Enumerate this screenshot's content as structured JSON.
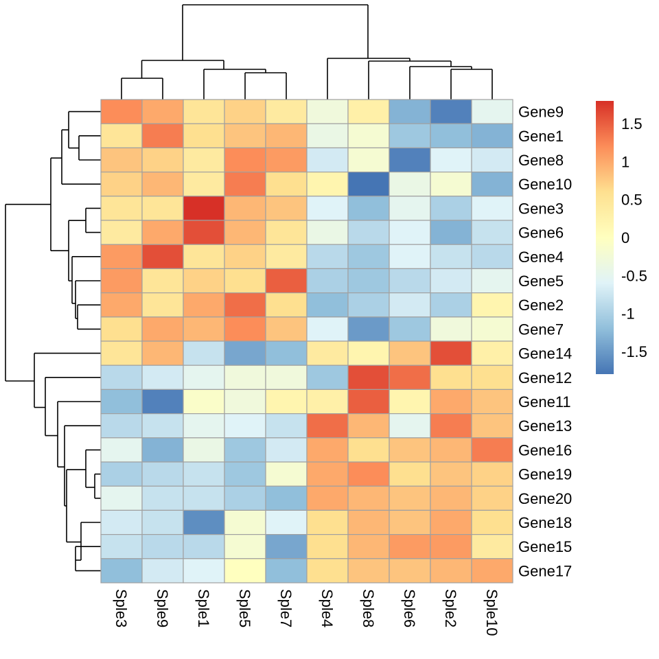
{
  "chart_data": {
    "type": "heatmap",
    "title": "",
    "columns": [
      "Sple3",
      "Sple9",
      "Sple1",
      "Sple5",
      "Sple7",
      "Sple4",
      "Sple8",
      "Sple6",
      "Sple2",
      "Sple10"
    ],
    "rows": [
      "Gene9",
      "Gene1",
      "Gene8",
      "Gene10",
      "Gene3",
      "Gene6",
      "Gene4",
      "Gene5",
      "Gene2",
      "Gene7",
      "Gene14",
      "Gene12",
      "Gene11",
      "Gene13",
      "Gene16",
      "Gene19",
      "Gene20",
      "Gene18",
      "Gene15",
      "Gene17"
    ],
    "values": [
      [
        1.2,
        1.0,
        0.5,
        0.7,
        0.4,
        -0.3,
        0.3,
        -1.3,
        -1.7,
        -0.5
      ],
      [
        0.5,
        1.3,
        0.6,
        0.8,
        0.9,
        -0.4,
        -0.2,
        -1.1,
        -1.2,
        -1.3
      ],
      [
        0.8,
        0.7,
        0.4,
        1.2,
        1.1,
        -0.7,
        -0.2,
        -1.7,
        -0.6,
        -0.7
      ],
      [
        0.7,
        0.9,
        0.4,
        1.3,
        0.6,
        0.2,
        -1.8,
        -0.4,
        -0.2,
        -1.3
      ],
      [
        0.5,
        0.5,
        1.8,
        0.9,
        0.8,
        -0.6,
        -1.2,
        -0.5,
        -1.0,
        -0.6
      ],
      [
        0.4,
        1.0,
        1.6,
        0.9,
        0.5,
        -0.4,
        -0.9,
        -0.6,
        -1.3,
        -0.8
      ],
      [
        1.1,
        1.6,
        0.5,
        0.7,
        0.4,
        -0.9,
        -1.1,
        -0.6,
        -0.8,
        -0.9
      ],
      [
        1.1,
        0.5,
        0.7,
        0.6,
        1.5,
        -1.0,
        -1.1,
        -0.9,
        -0.7,
        -0.5
      ],
      [
        1.0,
        0.5,
        1.0,
        1.4,
        0.6,
        -1.2,
        -1.0,
        -0.7,
        -1.0,
        0.2
      ],
      [
        0.6,
        1.0,
        0.9,
        1.2,
        0.8,
        -0.6,
        -1.5,
        -1.1,
        -0.3,
        -0.2
      ],
      [
        0.5,
        0.9,
        -0.8,
        -1.4,
        -1.2,
        0.4,
        0.2,
        0.8,
        1.6,
        0.3
      ],
      [
        -0.9,
        -0.7,
        -0.5,
        -0.3,
        -0.3,
        -1.1,
        1.6,
        1.4,
        0.6,
        0.6
      ],
      [
        -1.2,
        -1.7,
        -0.1,
        -0.3,
        0.2,
        0.3,
        1.5,
        0.2,
        1.0,
        0.8
      ],
      [
        -0.9,
        -0.8,
        -0.5,
        -0.6,
        -0.8,
        1.4,
        0.9,
        -0.5,
        1.3,
        0.8
      ],
      [
        -0.5,
        -1.3,
        -0.4,
        -1.1,
        -0.7,
        1.0,
        0.6,
        0.8,
        0.9,
        1.3
      ],
      [
        -1.0,
        -0.9,
        -0.8,
        -1.1,
        -0.2,
        1.0,
        1.2,
        0.6,
        0.8,
        0.7
      ],
      [
        -0.5,
        -0.8,
        -0.8,
        -1.0,
        -1.2,
        1.0,
        0.9,
        0.8,
        0.9,
        0.7
      ],
      [
        -0.7,
        -0.8,
        -1.6,
        -0.2,
        -0.6,
        0.6,
        0.9,
        0.8,
        1.0,
        0.6
      ],
      [
        -0.8,
        -0.9,
        -0.9,
        -0.2,
        -1.4,
        0.6,
        0.9,
        1.1,
        1.1,
        0.4
      ],
      [
        -1.2,
        -0.7,
        -0.6,
        0.0,
        -1.2,
        0.6,
        0.8,
        0.8,
        0.9,
        1.0
      ]
    ],
    "legend_ticks": [
      1.5,
      1,
      0.5,
      0,
      -0.5,
      -1,
      -1.5
    ],
    "legend_range": [
      -1.8,
      1.8
    ],
    "palette": [
      "#4575b4",
      "#91bfdb",
      "#e0f3f8",
      "#ffffbf",
      "#fee090",
      "#fc8d59",
      "#d73027"
    ],
    "cell_border_color": "#a0a0a0",
    "grid": false,
    "legend_placement": "right",
    "row_labels_placement": "right",
    "column_labels_placement": "bottom, rotated 90 degrees",
    "row_dendrogram": "left",
    "column_dendrogram": "top"
  }
}
